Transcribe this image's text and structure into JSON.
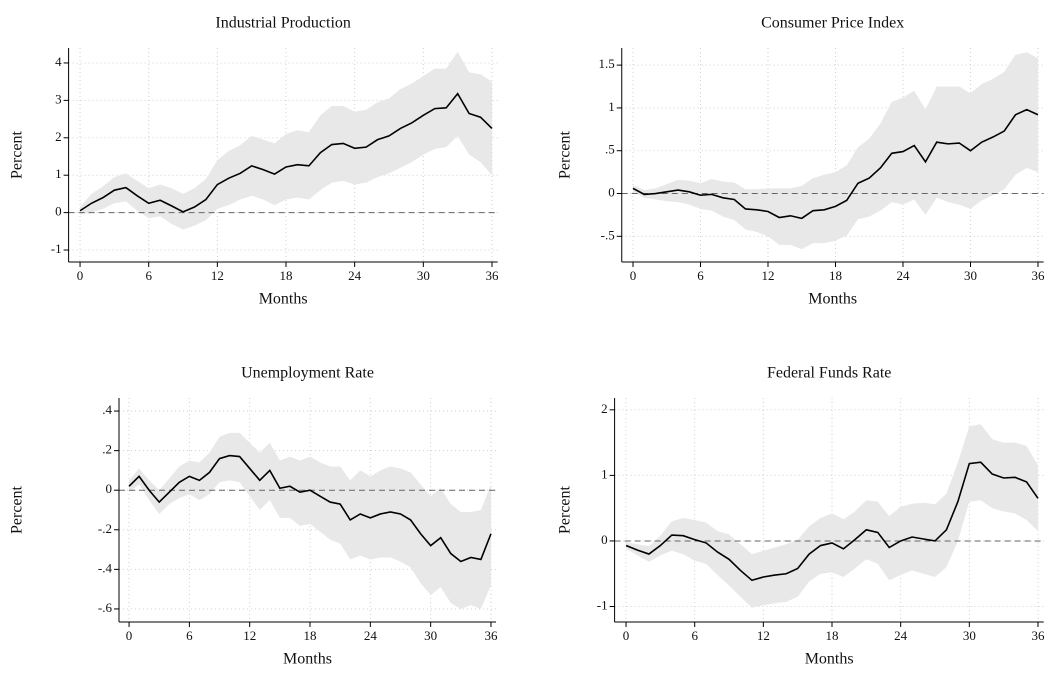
{
  "chart_data": [
    {
      "type": "line",
      "title": "Industrial Production",
      "xlabel": "Months",
      "ylabel": "Percent",
      "x": [
        0,
        1,
        2,
        3,
        4,
        5,
        6,
        7,
        8,
        9,
        10,
        11,
        12,
        13,
        14,
        15,
        16,
        17,
        18,
        19,
        20,
        21,
        22,
        23,
        24,
        25,
        26,
        27,
        28,
        29,
        30,
        31,
        32,
        33,
        34,
        35,
        36
      ],
      "values": [
        0.05,
        0.25,
        0.4,
        0.6,
        0.67,
        0.45,
        0.25,
        0.33,
        0.18,
        0.02,
        0.15,
        0.35,
        0.75,
        0.92,
        1.05,
        1.25,
        1.15,
        1.03,
        1.22,
        1.28,
        1.25,
        1.6,
        1.82,
        1.85,
        1.72,
        1.75,
        1.95,
        2.05,
        2.25,
        2.4,
        2.6,
        2.78,
        2.8,
        3.18,
        2.65,
        2.55,
        2.25
      ],
      "lower": [
        -0.05,
        0.0,
        0.1,
        0.25,
        0.3,
        0.05,
        -0.15,
        -0.1,
        -0.3,
        -0.45,
        -0.35,
        -0.2,
        0.1,
        0.2,
        0.35,
        0.45,
        0.35,
        0.2,
        0.35,
        0.4,
        0.35,
        0.6,
        0.8,
        0.85,
        0.75,
        0.8,
        0.95,
        1.05,
        1.2,
        1.35,
        1.55,
        1.7,
        1.75,
        2.05,
        1.55,
        1.35,
        1.0
      ],
      "upper": [
        0.15,
        0.5,
        0.7,
        0.95,
        1.05,
        0.85,
        0.65,
        0.75,
        0.65,
        0.5,
        0.65,
        0.9,
        1.4,
        1.65,
        1.8,
        2.05,
        1.95,
        1.85,
        2.1,
        2.2,
        2.15,
        2.6,
        2.85,
        2.85,
        2.7,
        2.75,
        2.95,
        3.05,
        3.3,
        3.45,
        3.65,
        3.85,
        3.85,
        4.3,
        3.75,
        3.7,
        3.5
      ],
      "color": "#000000",
      "band_color": "#e8e8e8",
      "reference_line": 0,
      "xlim": [
        -1,
        36.5
      ],
      "xticks": [
        0,
        6,
        12,
        18,
        24,
        30,
        36
      ],
      "ylim": [
        -1.32,
        4.4
      ],
      "yticks": [
        -1,
        0,
        1,
        2,
        3,
        4
      ],
      "grid": true
    },
    {
      "type": "line",
      "title": "Consumer Price Index",
      "xlabel": "Months",
      "ylabel": "Percent",
      "x": [
        0,
        1,
        2,
        3,
        4,
        5,
        6,
        7,
        8,
        9,
        10,
        11,
        12,
        13,
        14,
        15,
        16,
        17,
        18,
        19,
        20,
        21,
        22,
        23,
        24,
        25,
        26,
        27,
        28,
        29,
        30,
        31,
        32,
        33,
        34,
        35,
        36
      ],
      "values": [
        0.06,
        -0.01,
        0.0,
        0.02,
        0.04,
        0.02,
        -0.02,
        -0.01,
        -0.05,
        -0.07,
        -0.18,
        -0.19,
        -0.21,
        -0.28,
        -0.26,
        -0.29,
        -0.2,
        -0.19,
        -0.15,
        -0.08,
        0.12,
        0.18,
        0.3,
        0.47,
        0.49,
        0.56,
        0.37,
        0.6,
        0.58,
        0.59,
        0.5,
        0.6,
        0.66,
        0.73,
        0.92,
        0.98,
        0.92
      ],
      "lower": [
        0.02,
        -0.05,
        -0.07,
        -0.09,
        -0.1,
        -0.13,
        -0.18,
        -0.2,
        -0.27,
        -0.31,
        -0.42,
        -0.45,
        -0.5,
        -0.6,
        -0.6,
        -0.65,
        -0.58,
        -0.58,
        -0.55,
        -0.49,
        -0.3,
        -0.27,
        -0.2,
        -0.1,
        -0.13,
        -0.07,
        -0.25,
        -0.05,
        -0.1,
        -0.13,
        -0.18,
        -0.08,
        -0.02,
        0.05,
        0.22,
        0.3,
        0.25
      ],
      "upper": [
        0.1,
        0.04,
        0.06,
        0.11,
        0.16,
        0.15,
        0.12,
        0.17,
        0.14,
        0.13,
        0.05,
        0.05,
        0.06,
        0.06,
        0.06,
        0.09,
        0.18,
        0.22,
        0.25,
        0.33,
        0.54,
        0.64,
        0.82,
        1.07,
        1.12,
        1.2,
        0.98,
        1.25,
        1.25,
        1.25,
        1.17,
        1.28,
        1.34,
        1.42,
        1.62,
        1.65,
        1.58
      ],
      "color": "#000000",
      "band_color": "#e8e8e8",
      "reference_line": 0,
      "xlim": [
        -1,
        36.5
      ],
      "xticks": [
        0,
        6,
        12,
        18,
        24,
        30,
        36
      ],
      "ylim": [
        -0.8,
        1.7
      ],
      "yticks": [
        {
          "value": -0.5,
          "label": "-.5"
        },
        0,
        {
          "value": 0.5,
          "label": ".5"
        },
        1,
        1.5
      ],
      "grid": true
    },
    {
      "type": "line",
      "title": "Unemployment Rate",
      "xlabel": "Months",
      "ylabel": "Percent",
      "x": [
        0,
        1,
        2,
        3,
        4,
        5,
        6,
        7,
        8,
        9,
        10,
        11,
        12,
        13,
        14,
        15,
        16,
        17,
        18,
        19,
        20,
        21,
        22,
        23,
        24,
        25,
        26,
        27,
        28,
        29,
        30,
        31,
        32,
        33,
        34,
        35,
        36
      ],
      "values": [
        0.02,
        0.07,
        0.0,
        -0.06,
        -0.01,
        0.04,
        0.07,
        0.05,
        0.09,
        0.16,
        0.175,
        0.17,
        0.11,
        0.05,
        0.1,
        0.01,
        0.02,
        -0.01,
        0.0,
        -0.03,
        -0.06,
        -0.07,
        -0.15,
        -0.12,
        -0.14,
        -0.12,
        -0.11,
        -0.12,
        -0.15,
        -0.22,
        -0.28,
        -0.24,
        -0.32,
        -0.36,
        -0.34,
        -0.35,
        -0.22
      ],
      "lower": [
        -0.01,
        0.03,
        -0.05,
        -0.12,
        -0.07,
        -0.04,
        -0.02,
        -0.05,
        -0.02,
        0.04,
        0.05,
        0.04,
        -0.03,
        -0.1,
        -0.05,
        -0.14,
        -0.14,
        -0.18,
        -0.17,
        -0.21,
        -0.25,
        -0.27,
        -0.35,
        -0.33,
        -0.35,
        -0.34,
        -0.34,
        -0.36,
        -0.39,
        -0.47,
        -0.53,
        -0.49,
        -0.57,
        -0.6,
        -0.58,
        -0.6,
        -0.48
      ],
      "upper": [
        0.05,
        0.11,
        0.05,
        0.0,
        0.06,
        0.12,
        0.15,
        0.14,
        0.19,
        0.27,
        0.29,
        0.29,
        0.24,
        0.19,
        0.24,
        0.15,
        0.17,
        0.15,
        0.17,
        0.14,
        0.12,
        0.12,
        0.05,
        0.1,
        0.07,
        0.1,
        0.12,
        0.11,
        0.09,
        0.03,
        -0.03,
        0.01,
        -0.07,
        -0.11,
        -0.11,
        -0.1,
        0.03
      ],
      "color": "#000000",
      "band_color": "#e8e8e8",
      "reference_line": 0,
      "xlim": [
        -1,
        36.5
      ],
      "xticks": [
        0,
        6,
        12,
        18,
        24,
        30,
        36
      ],
      "ylim": [
        -0.666,
        0.466
      ],
      "yticks": [
        {
          "value": -0.6,
          "label": "-.6"
        },
        {
          "value": -0.4,
          "label": "-.4"
        },
        {
          "value": -0.2,
          "label": "-.2"
        },
        0,
        {
          "value": 0.2,
          "label": ".2"
        },
        {
          "value": 0.4,
          "label": ".4"
        }
      ],
      "grid": true
    },
    {
      "type": "line",
      "title": "Federal Funds Rate",
      "xlabel": "Months",
      "ylabel": "Percent",
      "x": [
        0,
        1,
        2,
        3,
        4,
        5,
        6,
        7,
        8,
        9,
        10,
        11,
        12,
        13,
        14,
        15,
        16,
        17,
        18,
        19,
        20,
        21,
        22,
        23,
        24,
        25,
        26,
        27,
        28,
        29,
        30,
        31,
        32,
        33,
        34,
        35,
        36
      ],
      "values": [
        -0.07,
        -0.14,
        -0.2,
        -0.07,
        0.09,
        0.08,
        0.02,
        -0.03,
        -0.17,
        -0.28,
        -0.45,
        -0.6,
        -0.55,
        -0.52,
        -0.5,
        -0.42,
        -0.2,
        -0.07,
        -0.03,
        -0.12,
        0.02,
        0.17,
        0.13,
        -0.1,
        0.0,
        0.06,
        0.03,
        0.0,
        0.17,
        0.6,
        1.18,
        1.2,
        1.02,
        0.96,
        0.97,
        0.9,
        0.65
      ],
      "lower": [
        -0.12,
        -0.22,
        -0.32,
        -0.22,
        -0.15,
        -0.2,
        -0.3,
        -0.35,
        -0.52,
        -0.68,
        -0.85,
        -1.02,
        -0.98,
        -0.95,
        -0.93,
        -0.85,
        -0.62,
        -0.5,
        -0.48,
        -0.55,
        -0.42,
        -0.28,
        -0.35,
        -0.6,
        -0.52,
        -0.45,
        -0.5,
        -0.55,
        -0.4,
        0.0,
        0.6,
        0.62,
        0.5,
        0.45,
        0.42,
        0.32,
        0.15
      ],
      "upper": [
        -0.02,
        -0.05,
        -0.08,
        0.08,
        0.3,
        0.35,
        0.32,
        0.28,
        0.15,
        0.1,
        -0.05,
        -0.2,
        -0.15,
        -0.1,
        -0.05,
        0.02,
        0.22,
        0.35,
        0.42,
        0.33,
        0.45,
        0.62,
        0.6,
        0.38,
        0.52,
        0.57,
        0.58,
        0.56,
        0.72,
        1.2,
        1.75,
        1.78,
        1.55,
        1.5,
        1.5,
        1.45,
        1.15
      ],
      "color": "#000000",
      "band_color": "#e8e8e8",
      "reference_line": 0,
      "xlim": [
        -1,
        36.5
      ],
      "xticks": [
        0,
        6,
        12,
        18,
        24,
        30,
        36
      ],
      "ylim": [
        -1.236,
        2.18
      ],
      "yticks": [
        -1,
        0,
        1,
        2
      ],
      "grid": true
    }
  ]
}
